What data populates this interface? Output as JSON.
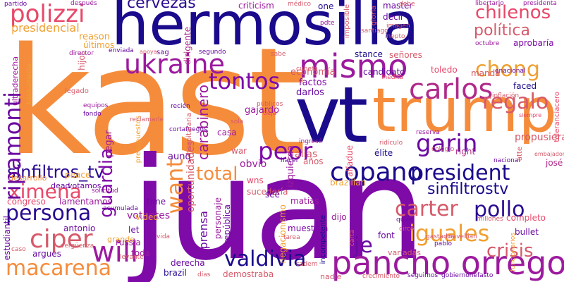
{
  "words": [
    {
      "text": "kast",
      "color": "#f58c3c",
      "vertical": false
    },
    {
      "text": "juan",
      "color": "#7e0aa8",
      "vertical": false
    },
    {
      "text": "hermosilla",
      "color": "#1a0a8c",
      "vertical": false
    },
    {
      "text": "vt",
      "color": "#1a0a8c",
      "vertical": false
    },
    {
      "text": "trump",
      "color": "#f58c3c",
      "vertical": false
    },
    {
      "text": "pancho orrego",
      "color": "#9c1a9e",
      "vertical": false
    },
    {
      "text": "carter",
      "color": "#d65a6a",
      "vertical": false
    },
    {
      "text": "pollo",
      "color": "#2a0a90",
      "vertical": false
    },
    {
      "text": "president",
      "color": "#1a0a8c",
      "vertical": false
    },
    {
      "text": "iguales",
      "color": "#f0a030",
      "vertical": false
    },
    {
      "text": "crisis",
      "color": "#d65a6a",
      "vertical": false
    },
    {
      "text": "valdivia",
      "color": "#1a0a8c",
      "vertical": false
    },
    {
      "text": "persona",
      "color": "#2a0a90",
      "vertical": false
    },
    {
      "text": "macarena",
      "color": "#f58c3c",
      "vertical": false
    },
    {
      "text": "ciper",
      "color": "#d65a6a",
      "vertical": false
    },
    {
      "text": "will",
      "color": "#9c1a9e",
      "vertical": false
    },
    {
      "text": "ximena",
      "color": "#e8486a",
      "vertical": false
    },
    {
      "text": "sinfiltros_tv",
      "color": "#2a0a90",
      "vertical": false
    },
    {
      "text": "total",
      "color": "#f58c3c",
      "vertical": false
    },
    {
      "text": "peor",
      "color": "#7e0aa8",
      "vertical": false
    },
    {
      "text": "copano",
      "color": "#1a0a8c",
      "vertical": false
    },
    {
      "text": "sinfiltrostv",
      "color": "#1a0a8c",
      "vertical": false
    },
    {
      "text": "garin",
      "color": "#6a0aa0",
      "vertical": false
    },
    {
      "text": "carlos",
      "color": "#b02a8a",
      "vertical": false
    },
    {
      "text": "regalo",
      "color": "#d65a6a",
      "vertical": false
    },
    {
      "text": "mismo",
      "color": "#9c1a9e",
      "vertical": false
    },
    {
      "text": "tontos",
      "color": "#7e0aa8",
      "vertical": false
    },
    {
      "text": "ukraine",
      "color": "#9c1a9e",
      "vertical": false
    },
    {
      "text": "chong",
      "color": "#f0a030",
      "vertical": false
    },
    {
      "text": "política",
      "color": "#d65a6a",
      "vertical": false
    },
    {
      "text": "chilenos",
      "color": "#e8486a",
      "vertical": false
    },
    {
      "text": "polizzi",
      "color": "#e8486a",
      "vertical": false
    },
    {
      "text": "cervezas",
      "color": "#2a0a90",
      "vertical": false
    },
    {
      "text": "presidencial",
      "color": "#f0a030",
      "vertical": false
    },
    {
      "text": "ripamonti",
      "color": "#6a0aa0",
      "vertical": true
    },
    {
      "text": "guardia",
      "color": "#7e0aa8",
      "vertical": true
    },
    {
      "text": "want",
      "color": "#f58c3c",
      "vertical": true
    },
    {
      "text": "carabinero",
      "color": "#9c1a9e",
      "vertical": true
    },
    {
      "text": "prensa",
      "color": "#6a0aa0",
      "vertical": true
    },
    {
      "text": "je",
      "color": "#6a0aa0",
      "vertical": false
    },
    {
      "text": "votantes",
      "color": "#9c1a9e",
      "vertical": false
    },
    {
      "text": "oportunidades",
      "color": "#d65a6a",
      "vertical": true
    },
    {
      "text": "pegar",
      "color": "#9c1a9e",
      "vertical": true
    },
    {
      "text": "aunq",
      "color": "#6a0aa0",
      "vertical": false
    },
    {
      "text": "obvio",
      "color": "#9c1a9e",
      "vertical": false
    },
    {
      "text": "alias",
      "color": "#d65a6a",
      "vertical": false
    },
    {
      "text": "war",
      "color": "#d65a6a",
      "vertical": false
    },
    {
      "text": "gajardo",
      "color": "#9c1a9e",
      "vertical": false
    },
    {
      "text": "darlos",
      "color": "#6a0aa0",
      "vertical": false
    },
    {
      "text": "factos",
      "color": "#7e0aa8",
      "vertical": false
    },
    {
      "text": "economía",
      "color": "#d65a6a",
      "vertical": false
    },
    {
      "text": "stance",
      "color": "#1a0a8c",
      "vertical": false
    },
    {
      "text": "candidato",
      "color": "#6a0aa0",
      "vertical": false
    },
    {
      "text": "señores",
      "color": "#d65a6a",
      "vertical": false
    },
    {
      "text": "toledo",
      "color": "#e8486a",
      "vertical": false
    },
    {
      "text": "manda",
      "color": "#d65a6a",
      "vertical": false
    },
    {
      "text": "faced",
      "color": "#1a0a8c",
      "vertical": false
    },
    {
      "text": "propusiera",
      "color": "#d65a6a",
      "vertical": false
    },
    {
      "text": "aprobaría",
      "color": "#7e0aa8",
      "vertical": false
    },
    {
      "text": "élite",
      "color": "#1a0a8c",
      "vertical": false
    },
    {
      "text": "right",
      "color": "#b02a8a",
      "vertical": false
    },
    {
      "text": "josé",
      "color": "#b02a8a",
      "vertical": false
    },
    {
      "text": "matías",
      "color": "#9c1a9e",
      "vertical": false
    },
    {
      "text": "sucedería",
      "color": "#d65a6a",
      "vertical": false
    },
    {
      "text": "dead",
      "color": "#6a0aa0",
      "vertical": false
    },
    {
      "text": "votamos",
      "color": "#6a0aa0",
      "vertical": false
    },
    {
      "text": "lamentamos",
      "color": "#9c1a9e",
      "vertical": false
    },
    {
      "text": "congreso",
      "color": "#e8486a",
      "vertical": false
    },
    {
      "text": "desarrollo",
      "color": "#f58c3c",
      "vertical": false
    },
    {
      "text": "peace",
      "color": "#f0a030",
      "vertical": false
    },
    {
      "text": "antonio",
      "color": "#6a0aa0",
      "vertical": false
    },
    {
      "text": "grande",
      "color": "#f0a030",
      "vertical": false
    },
    {
      "text": "russia",
      "color": "#9c1a9e",
      "vertical": false
    },
    {
      "text": "toda",
      "color": "#9c1a9e",
      "vertical": false
    },
    {
      "text": "derecha",
      "color": "#6a0aa0",
      "vertical": false
    },
    {
      "text": "brazil",
      "color": "#2a0a90",
      "vertical": false
    },
    {
      "text": "nadie",
      "color": "#d65a6a",
      "vertical": false
    },
    {
      "text": "demostraba",
      "color": "#d65a6a",
      "vertical": false
    },
    {
      "text": "argues",
      "color": "#6a0aa0",
      "vertical": false
    },
    {
      "text": "muestren",
      "color": "#7e0aa8",
      "vertical": false
    },
    {
      "text": "dijo",
      "color": "#9c1a9e",
      "vertical": false
    },
    {
      "text": "completo",
      "color": "#e8486a",
      "vertical": false
    },
    {
      "text": "bullet",
      "color": "#6a0aa0",
      "vertical": false
    },
    {
      "text": "variadas",
      "color": "#d65a6a",
      "vertical": false
    },
    {
      "text": "estudiantil",
      "color": "#6a0aa0",
      "vertical": true
    },
    {
      "text": "personaje",
      "color": "#9c1a9e",
      "vertical": true
    },
    {
      "text": "república",
      "color": "#6a0aa0",
      "vertical": true
    },
    {
      "text": "negacionismo",
      "color": "#f0a030",
      "vertical": true
    },
    {
      "text": "izquierda",
      "color": "#9c1a9e",
      "vertical": true
    },
    {
      "text": "alfadue",
      "color": "#e8486a",
      "vertical": true
    },
    {
      "text": "dirigente",
      "color": "#b02a8a",
      "vertical": true
    },
    {
      "text": "ultraderecha",
      "color": "#9c1a9e",
      "vertical": true
    },
    {
      "text": "hijos",
      "color": "#d65a6a",
      "vertical": true
    },
    {
      "text": "reason",
      "color": "#f0a030",
      "vertical": false
    },
    {
      "text": "últimos",
      "color": "#f0a030",
      "vertical": false
    },
    {
      "text": "criticism",
      "color": "#9c1a9e",
      "vertical": false
    },
    {
      "text": "master",
      "color": "#6a0aa0",
      "vertical": false
    },
    {
      "text": "decir",
      "color": "#6a0aa0",
      "vertical": false
    },
    {
      "text": "one",
      "color": "#2a0a90",
      "vertical": false
    },
    {
      "text": "partido",
      "color": "#6a0aa0",
      "vertical": false
    },
    {
      "text": "después",
      "color": "#9c1a9e",
      "vertical": false
    },
    {
      "text": "médico",
      "color": "#d65a6a",
      "vertical": false
    },
    {
      "text": "libertario",
      "color": "#9c1a9e",
      "vertical": false
    },
    {
      "text": "presidenta",
      "color": "#9c1a9e",
      "vertical": false
    },
    {
      "text": "imagen",
      "color": "#d65a6a",
      "vertical": false
    },
    {
      "text": "inepto",
      "color": "#d65a6a",
      "vertical": false
    },
    {
      "text": "santiago",
      "color": "#d65a6a",
      "vertical": false
    },
    {
      "text": "octubre",
      "color": "#9c1a9e",
      "vertical": false
    },
    {
      "text": "inflación",
      "color": "#d65a6a",
      "vertical": false
    },
    {
      "text": "enacional",
      "color": "#6a0aa0",
      "vertical": false
    },
    {
      "text": "director",
      "color": "#9c1a9e",
      "vertical": false
    },
    {
      "text": "enviada",
      "color": "#6a0aa0",
      "vertical": false
    },
    {
      "text": "segundo",
      "color": "#6a0aa0",
      "vertical": false
    },
    {
      "text": "sabe",
      "color": "#d65a6a",
      "vertical": false
    },
    {
      "text": "cuneta",
      "color": "#d65a6a",
      "vertical": false
    },
    {
      "text": "inédita",
      "color": "#e8486a",
      "vertical": false
    },
    {
      "text": "recién",
      "color": "#6a0aa0",
      "vertical": false
    },
    {
      "text": "equipos",
      "color": "#9c1a9e",
      "vertical": false
    },
    {
      "text": "fondo",
      "color": "#6a0aa0",
      "vertical": false
    },
    {
      "text": "casa",
      "color": "#9c1a9e",
      "vertical": false
    },
    {
      "text": "sola",
      "color": "#d65a6a",
      "vertical": false
    },
    {
      "text": "deja",
      "color": "#e8486a",
      "vertical": false
    },
    {
      "text": "públicos",
      "color": "#d65a6a",
      "vertical": false
    },
    {
      "text": "hacer",
      "color": "#6a0aa0",
      "vertical": false
    },
    {
      "text": "años",
      "color": "#d65a6a",
      "vertical": false
    },
    {
      "text": "ingresé",
      "color": "#9c1a9e",
      "vertical": false
    },
    {
      "text": "ridículo",
      "color": "#d65a6a",
      "vertical": false
    },
    {
      "text": "reserva",
      "color": "#9c1a9e",
      "vertical": false
    },
    {
      "text": "colegio",
      "color": "#d65a6a",
      "vertical": false
    },
    {
      "text": "nacional",
      "color": "#6a0aa0",
      "vertical": false
    },
    {
      "text": "brazilian",
      "color": "#f0a030",
      "vertical": false
    },
    {
      "text": "see",
      "color": "#6a0aa0",
      "vertical": false
    },
    {
      "text": "wns",
      "color": "#e8486a",
      "vertical": false
    },
    {
      "text": "time",
      "color": "#6a0aa0",
      "vertical": false
    },
    {
      "text": "solicitud",
      "color": "#9c1a9e",
      "vertical": false
    },
    {
      "text": "acumulada",
      "color": "#6a0aa0",
      "vertical": false
    },
    {
      "text": "vídeo",
      "color": "#f0a030",
      "vertical": false
    },
    {
      "text": "let",
      "color": "#6a0aa0",
      "vertical": false
    },
    {
      "text": "vergüenza",
      "color": "#d65a6a",
      "vertical": false
    },
    {
      "text": "font",
      "color": "#6a0aa0",
      "vertical": false
    },
    {
      "text": "circo",
      "color": "#d65a6a",
      "vertical": false
    },
    {
      "text": "gastados",
      "color": "#d65a6a",
      "vertical": false
    },
    {
      "text": "navellian",
      "color": "#d65a6a",
      "vertical": false
    },
    {
      "text": "millones",
      "color": "#d65a6a",
      "vertical": false
    },
    {
      "text": "quién",
      "color": "#6a0aa0",
      "vertical": false
    },
    {
      "text": "pablo",
      "color": "#6a0aa0",
      "vertical": false
    },
    {
      "text": "tarea",
      "color": "#d65a6a",
      "vertical": false
    },
    {
      "text": "seguimos",
      "color": "#6a0aa0",
      "vertical": false
    },
    {
      "text": "gobiernonefasto",
      "color": "#6a0aa0",
      "vertical": false
    },
    {
      "text": "crecimiento",
      "color": "#d65a6a",
      "vertical": false
    },
    {
      "text": "cadem",
      "color": "#d65a6a",
      "vertical": false
    },
    {
      "text": "días",
      "color": "#d65a6a",
      "vertical": false
    },
    {
      "text": "caso",
      "color": "#d65a6a",
      "vertical": false
    },
    {
      "text": "levanté",
      "color": "#d65a6a",
      "vertical": false
    },
    {
      "text": "vida",
      "color": "#d65a6a",
      "vertical": false
    },
    {
      "text": "pdte",
      "color": "#9c1a9e",
      "vertical": false
    },
    {
      "text": "gloria",
      "color": "#d65a6a",
      "vertical": true
    },
    {
      "text": "imposible",
      "color": "#d65a6a",
      "vertical": true
    },
    {
      "text": "presupuestos",
      "color": "#f0a030",
      "vertical": true
    },
    {
      "text": "reclamarle",
      "color": "#d65a6a",
      "vertical": false
    },
    {
      "text": "cortafuegos",
      "color": "#6a0aa0",
      "vertical": false
    },
    {
      "text": "hospitalaria",
      "color": "#d65a6a",
      "vertical": true
    },
    {
      "text": "incompetente",
      "color": "#1a0a8c",
      "vertical": true
    },
    {
      "text": "sag",
      "color": "#6a0aa0",
      "vertical": false
    },
    {
      "text": "apoya",
      "color": "#d65a6a",
      "vertical": false
    },
    {
      "text": "funcionarios",
      "color": "#f0a030",
      "vertical": true
    },
    {
      "text": "toleranciacero",
      "color": "#e8486a",
      "vertical": true
    },
    {
      "text": "atte",
      "color": "#d65a6a",
      "vertical": true
    },
    {
      "text": "siempre",
      "color": "#e8486a",
      "vertical": false
    },
    {
      "text": "básicamente",
      "color": "#f0a030",
      "vertical": true
    },
    {
      "text": "legado",
      "color": "#d65a6a",
      "vertical": false
    },
    {
      "text": "embajador",
      "color": "#d65a6a",
      "vertical": false
    },
    {
      "text": "debe",
      "color": "#d65a6a",
      "vertical": false
    },
    {
      "text": "carta",
      "color": "#d65a6a",
      "vertical": true
    }
  ]
}
